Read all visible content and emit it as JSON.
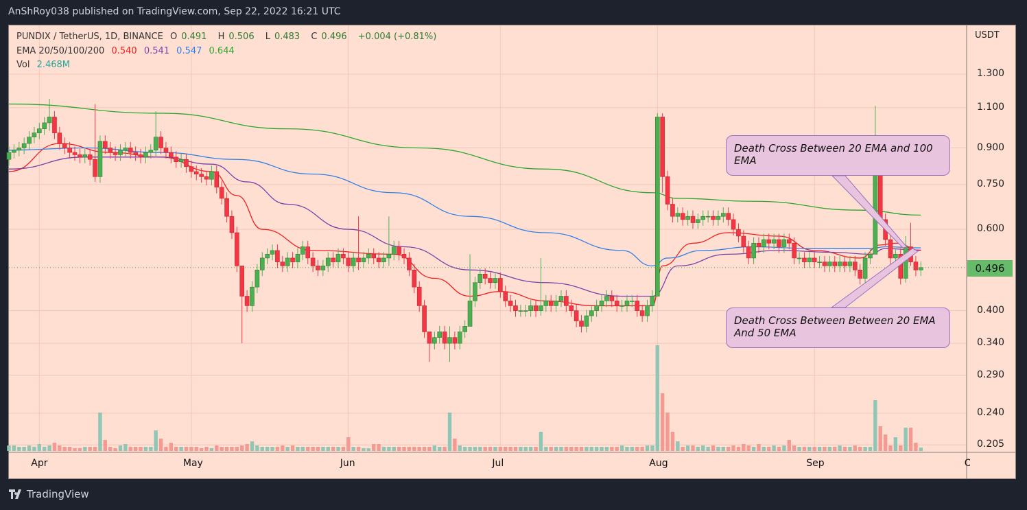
{
  "header": {
    "published": "AnShRoy038 published on TradingView.com, Sep 22, 2022 16:21 UTC"
  },
  "legend": {
    "symbol": "PUNDIX / TetherUS, 1D, BINANCE",
    "o_label": "O",
    "o": "0.491",
    "h_label": "H",
    "h": "0.506",
    "l_label": "L",
    "l": "0.483",
    "c_label": "C",
    "c": "0.496",
    "change": "+0.004 (+0.81%)",
    "ema_label": "EMA 20/50/100/200",
    "ema20": "0.540",
    "ema50": "0.541",
    "ema100": "0.547",
    "ema200": "0.644",
    "vol_label": "Vol",
    "vol": "2.468M"
  },
  "annotations": [
    {
      "text": "Death Cross Between 20 EMA and 100 EMA"
    },
    {
      "text": "Death Cross Between Between 20 EMA And 50 EMA"
    }
  ],
  "footer": {
    "brand": "TradingView"
  },
  "colors": {
    "up": "#4caf50",
    "down": "#f23645",
    "vol_up": "#8fc7b6",
    "vol_down": "#f49a92",
    "ema20": "#f21d1d",
    "ema50": "#7b3fa8",
    "ema100": "#2f7fe8",
    "ema200": "#2ca52c",
    "background": "#ffdfd2",
    "last_price": "#66bb6a"
  },
  "chart_data": {
    "type": "candlestick",
    "title": "PUNDIX / TetherUS, 1D, BINANCE",
    "currency": "USDT",
    "y_scale": "log",
    "ylim": [
      0.2,
      1.4
    ],
    "y_ticks": [
      "1.300",
      "1.100",
      "0.900",
      "0.750",
      "0.600",
      "0.400",
      "0.340",
      "0.290",
      "0.240",
      "0.205"
    ],
    "last_price": "0.496",
    "xlim": [
      "2022-03-26",
      "2022-10-01"
    ],
    "x_ticks": [
      "Apr",
      "May",
      "Jun",
      "Jul",
      "Aug",
      "Sep",
      "Oc"
    ],
    "grid": true,
    "first_open": 0.85,
    "close": [
      0.88,
      0.89,
      0.9,
      0.92,
      0.95,
      0.97,
      0.99,
      1.02,
      1.05,
      0.97,
      0.92,
      0.9,
      0.88,
      0.87,
      0.86,
      0.87,
      0.85,
      0.78,
      0.93,
      0.9,
      0.88,
      0.87,
      0.89,
      0.9,
      0.88,
      0.87,
      0.86,
      0.88,
      0.89,
      0.95,
      0.9,
      0.88,
      0.86,
      0.84,
      0.85,
      0.82,
      0.8,
      0.79,
      0.78,
      0.77,
      0.8,
      0.74,
      0.7,
      0.64,
      0.59,
      0.5,
      0.43,
      0.41,
      0.45,
      0.49,
      0.52,
      0.53,
      0.54,
      0.51,
      0.5,
      0.52,
      0.51,
      0.53,
      0.55,
      0.52,
      0.5,
      0.49,
      0.5,
      0.52,
      0.51,
      0.53,
      0.52,
      0.5,
      0.52,
      0.51,
      0.52,
      0.53,
      0.52,
      0.51,
      0.52,
      0.53,
      0.55,
      0.53,
      0.52,
      0.49,
      0.45,
      0.41,
      0.36,
      0.34,
      0.35,
      0.36,
      0.34,
      0.35,
      0.34,
      0.36,
      0.37,
      0.42,
      0.46,
      0.48,
      0.47,
      0.46,
      0.47,
      0.44,
      0.42,
      0.41,
      0.4,
      0.4,
      0.4,
      0.41,
      0.4,
      0.41,
      0.42,
      0.41,
      0.42,
      0.43,
      0.41,
      0.4,
      0.38,
      0.37,
      0.39,
      0.4,
      0.41,
      0.42,
      0.43,
      0.42,
      0.41,
      0.41,
      0.42,
      0.42,
      0.4,
      0.39,
      0.41,
      0.43,
      1.05,
      0.78,
      0.68,
      0.64,
      0.65,
      0.63,
      0.64,
      0.62,
      0.63,
      0.64,
      0.64,
      0.63,
      0.64,
      0.65,
      0.63,
      0.6,
      0.58,
      0.55,
      0.52,
      0.56,
      0.55,
      0.57,
      0.56,
      0.57,
      0.55,
      0.57,
      0.56,
      0.52,
      0.52,
      0.51,
      0.52,
      0.51,
      0.51,
      0.5,
      0.51,
      0.5,
      0.51,
      0.5,
      0.51,
      0.49,
      0.47,
      0.52,
      0.53,
      0.8,
      0.63,
      0.57,
      0.52,
      0.53,
      0.47,
      0.55,
      0.51,
      0.49,
      0.496
    ],
    "wick_extremes": {
      "2022-04-03": [
        1.15,
        0.98
      ],
      "2022-04-12": [
        1.12,
        0.76
      ],
      "2022-04-24": [
        1.08,
        0.86
      ],
      "2022-05-11": [
        0.43,
        0.34
      ],
      "2022-06-03": [
        0.64,
        0.49
      ],
      "2022-06-09": [
        0.64,
        0.5
      ],
      "2022-06-17": [
        0.36,
        0.31
      ],
      "2022-06-21": [
        0.37,
        0.31
      ],
      "2022-06-25": [
        0.53,
        0.41
      ],
      "2022-07-09": [
        0.52,
        0.39
      ],
      "2022-08-01": [
        1.07,
        0.43
      ],
      "2022-08-02": [
        1.07,
        0.72
      ],
      "2022-09-13": [
        1.11,
        0.53
      ],
      "2022-09-14": [
        0.87,
        0.62
      ],
      "2022-09-19": [
        0.58,
        0.46
      ],
      "2022-09-20": [
        0.62,
        0.5
      ]
    },
    "volume_millions": [
      4,
      4,
      3,
      3,
      4,
      3,
      5,
      3,
      4,
      6,
      4,
      3,
      3,
      2,
      2,
      3,
      3,
      3,
      28,
      8,
      3,
      2,
      4,
      5,
      3,
      3,
      3,
      3,
      3,
      15,
      9,
      3,
      6,
      3,
      3,
      3,
      3,
      3,
      2,
      3,
      2,
      4,
      3,
      3,
      3,
      3,
      4,
      5,
      7,
      4,
      3,
      3,
      3,
      3,
      4,
      3,
      4,
      3,
      3,
      3,
      3,
      3,
      3,
      3,
      3,
      3,
      3,
      10,
      3,
      3,
      2,
      2,
      5,
      5,
      3,
      3,
      3,
      3,
      3,
      3,
      3,
      3,
      3,
      3,
      4,
      3,
      3,
      28,
      9,
      4,
      3,
      3,
      3,
      3,
      3,
      3,
      3,
      3,
      3,
      3,
      3,
      3,
      3,
      3,
      3,
      14,
      3,
      3,
      3,
      3,
      3,
      3,
      3,
      3,
      3,
      3,
      3,
      3,
      3,
      3,
      3,
      4,
      3,
      3,
      3,
      3,
      4,
      4,
      77,
      42,
      28,
      14,
      7,
      3,
      4,
      4,
      3,
      4,
      3,
      4,
      3,
      3,
      3,
      4,
      3,
      5,
      4,
      3,
      5,
      3,
      3,
      4,
      3,
      4,
      8,
      4,
      3,
      3,
      3,
      3,
      3,
      3,
      3,
      3,
      4,
      3,
      3,
      4,
      3,
      3,
      3,
      37,
      18,
      12,
      4,
      10,
      4,
      17,
      17,
      6,
      2.468
    ],
    "series": [
      {
        "name": "EMA 20",
        "points": [
          [
            "2022-03-26",
            0.8
          ],
          [
            "2022-04-05",
            0.92
          ],
          [
            "2022-04-15",
            0.88
          ],
          [
            "2022-04-25",
            0.86
          ],
          [
            "2022-05-05",
            0.8
          ],
          [
            "2022-05-10",
            0.71
          ],
          [
            "2022-05-15",
            0.6
          ],
          [
            "2022-05-25",
            0.54
          ],
          [
            "2022-06-10",
            0.53
          ],
          [
            "2022-06-18",
            0.47
          ],
          [
            "2022-06-25",
            0.43
          ],
          [
            "2022-07-01",
            0.44
          ],
          [
            "2022-07-10",
            0.42
          ],
          [
            "2022-07-20",
            0.41
          ],
          [
            "2022-07-31",
            0.41
          ],
          [
            "2022-08-02",
            0.5
          ],
          [
            "2022-08-08",
            0.56
          ],
          [
            "2022-08-15",
            0.59
          ],
          [
            "2022-08-25",
            0.58
          ],
          [
            "2022-09-01",
            0.54
          ],
          [
            "2022-09-10",
            0.52
          ],
          [
            "2022-09-14",
            0.555
          ],
          [
            "2022-09-17",
            0.56
          ],
          [
            "2022-09-22",
            0.54
          ]
        ]
      },
      {
        "name": "EMA 50",
        "points": [
          [
            "2022-03-26",
            0.81
          ],
          [
            "2022-04-10",
            0.86
          ],
          [
            "2022-04-25",
            0.86
          ],
          [
            "2022-05-05",
            0.83
          ],
          [
            "2022-05-12",
            0.76
          ],
          [
            "2022-05-20",
            0.68
          ],
          [
            "2022-06-01",
            0.6
          ],
          [
            "2022-06-12",
            0.55
          ],
          [
            "2022-06-25",
            0.49
          ],
          [
            "2022-07-10",
            0.46
          ],
          [
            "2022-07-25",
            0.43
          ],
          [
            "2022-07-31",
            0.43
          ],
          [
            "2022-08-05",
            0.5
          ],
          [
            "2022-08-15",
            0.53
          ],
          [
            "2022-08-25",
            0.54
          ],
          [
            "2022-09-05",
            0.535
          ],
          [
            "2022-09-12",
            0.53
          ],
          [
            "2022-09-15",
            0.545
          ],
          [
            "2022-09-22",
            0.541
          ]
        ]
      },
      {
        "name": "EMA 100",
        "points": [
          [
            "2022-03-26",
            0.89
          ],
          [
            "2022-04-10",
            0.9
          ],
          [
            "2022-04-25",
            0.88
          ],
          [
            "2022-05-10",
            0.85
          ],
          [
            "2022-05-25",
            0.79
          ],
          [
            "2022-06-10",
            0.72
          ],
          [
            "2022-06-25",
            0.64
          ],
          [
            "2022-07-10",
            0.59
          ],
          [
            "2022-07-25",
            0.54
          ],
          [
            "2022-07-31",
            0.5
          ],
          [
            "2022-08-03",
            0.52
          ],
          [
            "2022-08-10",
            0.54
          ],
          [
            "2022-08-20",
            0.55
          ],
          [
            "2022-09-01",
            0.545
          ],
          [
            "2022-09-12",
            0.545
          ],
          [
            "2022-09-15",
            0.55
          ],
          [
            "2022-09-22",
            0.547
          ]
        ]
      },
      {
        "name": "EMA 200",
        "points": [
          [
            "2022-03-26",
            1.12
          ],
          [
            "2022-04-25",
            1.07
          ],
          [
            "2022-05-20",
            0.99
          ],
          [
            "2022-06-15",
            0.9
          ],
          [
            "2022-07-10",
            0.81
          ],
          [
            "2022-07-31",
            0.72
          ],
          [
            "2022-08-05",
            0.7
          ],
          [
            "2022-08-20",
            0.69
          ],
          [
            "2022-09-10",
            0.66
          ],
          [
            "2022-09-22",
            0.644
          ]
        ]
      }
    ]
  }
}
